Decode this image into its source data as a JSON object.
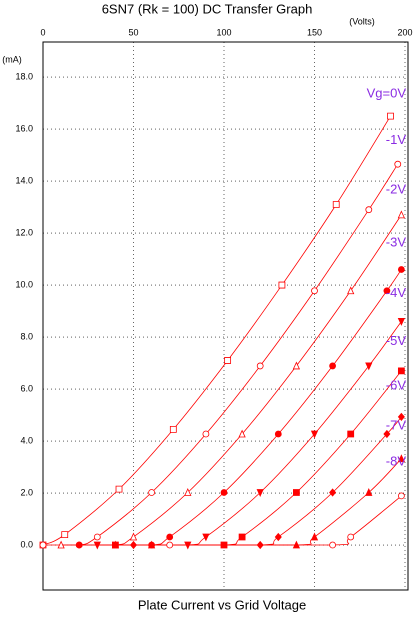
{
  "chart_data": {
    "type": "line",
    "title": "6SN7 (Rk = 100) DC Transfer Graph",
    "x_unit": "(Volts)",
    "y_unit": "(mA)",
    "xlabel": "Plate Current vs Grid Voltage",
    "xlim": [
      0,
      200
    ],
    "ylim": [
      -1.73,
      19.35
    ],
    "xticks": [
      0,
      50,
      100,
      150,
      200
    ],
    "yticks": [
      {
        "value": 0,
        "label": "0.0"
      },
      {
        "value": 2,
        "label": "2.0"
      },
      {
        "value": 4,
        "label": "4.0"
      },
      {
        "value": 6,
        "label": "6.0"
      },
      {
        "value": 8,
        "label": "8.0"
      },
      {
        "value": 10,
        "label": "10.0"
      },
      {
        "value": 12,
        "label": "12.0"
      },
      {
        "value": 14,
        "label": "14.0"
      },
      {
        "value": 16,
        "label": "16.0"
      },
      {
        "value": 18,
        "label": "18.0"
      }
    ],
    "grid": true,
    "label_color": "#8a2be2",
    "series": [
      {
        "name": "Vg=0V",
        "color": "#ff0000",
        "marker": "square-open",
        "x": [
          0,
          12,
          42,
          72,
          102,
          132,
          162,
          192
        ],
        "values": [
          0,
          0.4,
          2.15,
          4.45,
          7.1,
          10.0,
          13.1,
          16.5
        ]
      },
      {
        "name": "-1V",
        "color": "#ff0000",
        "marker": "circle-open",
        "x": [
          0,
          20,
          30,
          60,
          90,
          120,
          150,
          180,
          196
        ],
        "values": [
          0,
          0,
          0.31,
          2.02,
          4.27,
          6.89,
          9.78,
          12.9,
          14.65
        ]
      },
      {
        "name": "-2V",
        "color": "#ff0000",
        "marker": "triangle-open",
        "x": [
          10,
          40,
          50,
          80,
          110,
          140,
          170,
          198
        ],
        "values": [
          0,
          0,
          0.31,
          2.02,
          4.27,
          6.89,
          9.78,
          12.7
        ]
      },
      {
        "name": "-3V",
        "color": "#ff0000",
        "marker": "circle",
        "x": [
          20,
          60,
          70,
          100,
          130,
          160,
          190,
          198
        ],
        "values": [
          0,
          0,
          0.31,
          2.02,
          4.27,
          6.89,
          9.78,
          10.6
        ]
      },
      {
        "name": "-4V",
        "color": "#ff0000",
        "marker": "triangle-down",
        "x": [
          30,
          80,
          90,
          120,
          150,
          180,
          198
        ],
        "values": [
          0,
          0,
          0.31,
          2.02,
          4.27,
          6.89,
          8.6
        ]
      },
      {
        "name": "-5V",
        "color": "#ff0000",
        "marker": "square",
        "x": [
          40,
          100,
          110,
          140,
          170,
          198
        ],
        "values": [
          0,
          0,
          0.31,
          2.02,
          4.27,
          6.7
        ]
      },
      {
        "name": "-6V",
        "color": "#ff0000",
        "marker": "diamond",
        "x": [
          50,
          120,
          130,
          160,
          190,
          198
        ],
        "values": [
          0,
          0,
          0.31,
          2.02,
          4.27,
          4.93
        ]
      },
      {
        "name": "-7V",
        "color": "#ff0000",
        "marker": "triangle",
        "x": [
          60,
          140,
          150,
          180,
          198
        ],
        "values": [
          0,
          0,
          0.31,
          2.02,
          3.32
        ]
      },
      {
        "name": "-8V",
        "color": "#ff0000",
        "marker": "circle-open",
        "x": [
          70,
          160,
          170,
          198
        ],
        "values": [
          0,
          0,
          0.31,
          1.89
        ]
      }
    ]
  }
}
